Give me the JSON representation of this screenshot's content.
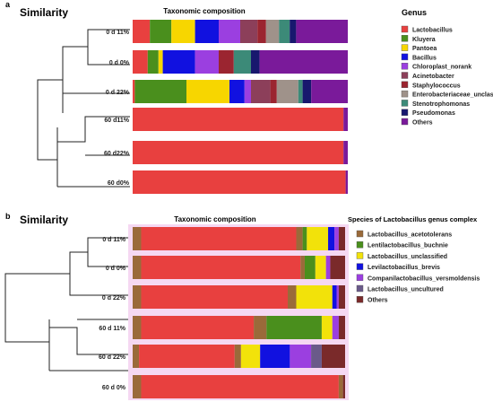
{
  "panels": [
    {
      "letter": "a",
      "similarity_title": "Similarity",
      "composition_title": "Taxonomic composition",
      "legend_title": "Genus",
      "legend": [
        {
          "name": "Lactobacillus",
          "color": "#e8403f"
        },
        {
          "name": "Kluyera",
          "color": "#4a8f1d"
        },
        {
          "name": "Pantoea",
          "color": "#f7d600"
        },
        {
          "name": "Bacillus",
          "color": "#1111e0"
        },
        {
          "name": "Chloroplast_norank",
          "color": "#9b3fe0"
        },
        {
          "name": "Acinetobacter",
          "color": "#8c3f5a"
        },
        {
          "name": "Staphylococcus",
          "color": "#9b2530"
        },
        {
          "name": "Enterobacteriaceae_unclassified",
          "color": "#9f928a"
        },
        {
          "name": "Stenotrophomonas",
          "color": "#3c8a78"
        },
        {
          "name": "Pseudomonas",
          "color": "#18186e"
        },
        {
          "name": "Others",
          "color": "#7a1a9a"
        }
      ]
    },
    {
      "letter": "b",
      "similarity_title": "Similarity",
      "composition_title": "Taxonomic composition",
      "legend_title": "Species of Lactobacillus genus complex",
      "legend": [
        {
          "name": "Lactobacillus_acetotolerans",
          "color": "#9a6a3a"
        },
        {
          "name": "Lentilactobacillus_buchnie",
          "color": "#4a8f1d"
        },
        {
          "name": "Lactobacillus_unclassified",
          "color": "#f2e20a"
        },
        {
          "name": "Levilactobacillus_brevis",
          "color": "#1111e0"
        },
        {
          "name": "Companilactobacillus_versmoldensis",
          "color": "#9b3fe0"
        },
        {
          "name": "Lactobacillus_uncultured",
          "color": "#6a5a8a"
        },
        {
          "name": "Others",
          "color": "#7a2a2a"
        }
      ]
    }
  ],
  "chart_data": [
    {
      "type": "bar",
      "orientation": "horizontal",
      "stacked": true,
      "title": "Taxonomic composition",
      "categories": [
        "0 d  11%",
        "0 d 0%",
        "0 d 22%",
        "60 d11%",
        "60 d22%",
        "60 d0%"
      ],
      "xlim": [
        0,
        100
      ],
      "series": [
        {
          "name": "Lactobacillus",
          "color": "#e8403f",
          "values": [
            8,
            7,
            1,
            98,
            98,
            99
          ]
        },
        {
          "name": "Kluyera",
          "color": "#4a8f1d",
          "values": [
            10,
            5,
            24,
            0,
            0,
            0
          ]
        },
        {
          "name": "Pantoea",
          "color": "#f7d600",
          "values": [
            11,
            2,
            20,
            0,
            0,
            0
          ]
        },
        {
          "name": "Bacillus",
          "color": "#1111e0",
          "values": [
            11,
            15,
            7,
            0,
            0,
            0
          ]
        },
        {
          "name": "Chloroplast_norank",
          "color": "#9b3fe0",
          "values": [
            10,
            11,
            3,
            0,
            0,
            0
          ]
        },
        {
          "name": "Acinetobacter",
          "color": "#8c3f5a",
          "values": [
            8,
            0,
            9,
            0,
            0,
            0
          ]
        },
        {
          "name": "Staphylococcus",
          "color": "#9b2530",
          "values": [
            4,
            7,
            3,
            0,
            0,
            0
          ]
        },
        {
          "name": "Enterobacteriaceae_unclassified",
          "color": "#9f928a",
          "values": [
            6,
            0,
            10,
            0,
            0,
            0
          ]
        },
        {
          "name": "Stenotrophomonas",
          "color": "#3c8a78",
          "values": [
            5,
            8,
            2,
            0,
            0,
            0
          ]
        },
        {
          "name": "Pseudomonas",
          "color": "#18186e",
          "values": [
            3,
            4,
            4,
            0,
            0,
            0
          ]
        },
        {
          "name": "Others",
          "color": "#7a1a9a",
          "values": [
            24,
            41,
            17,
            2,
            2,
            1
          ]
        }
      ]
    },
    {
      "type": "bar",
      "orientation": "horizontal",
      "stacked": true,
      "title": "Taxonomic composition",
      "categories": [
        "0 d 11%",
        "0 d 0%",
        "0 d 22%",
        "60 d 11%",
        "60 d 22%",
        "60 d 0%"
      ],
      "xlim": [
        0,
        100
      ],
      "series": [
        {
          "name": "Lactobacillus_acetotolerans",
          "color": "#9a6a3a",
          "values": [
            4,
            4,
            4,
            4,
            3,
            4
          ]
        },
        {
          "name": "Lactobacillus",
          "color": "#e8403f",
          "values": [
            73,
            75,
            69,
            53,
            45,
            93
          ]
        },
        {
          "name": "Lactobacillus_acetotolerans",
          "color": "#9a6a3a",
          "values": [
            3,
            2,
            4,
            6,
            3,
            2
          ]
        },
        {
          "name": "Lentilactobacillus_buchnie",
          "color": "#4a8f1d",
          "values": [
            2,
            5,
            0,
            26,
            0,
            0
          ]
        },
        {
          "name": "Lactobacillus_unclassified",
          "color": "#f2e20a",
          "values": [
            10,
            5,
            17,
            5,
            9,
            0
          ]
        },
        {
          "name": "Levilactobacillus_brevis",
          "color": "#1111e0",
          "values": [
            3,
            0,
            2,
            0,
            14,
            0
          ]
        },
        {
          "name": "Companilactobacillus_versmoldensis",
          "color": "#9b3fe0",
          "values": [
            2,
            2,
            1,
            3,
            10,
            0
          ]
        },
        {
          "name": "Lactobacillus_uncultured",
          "color": "#6a5a8a",
          "values": [
            0,
            0,
            0,
            0,
            5,
            0
          ]
        },
        {
          "name": "Others",
          "color": "#7a2a2a",
          "values": [
            3,
            7,
            3,
            3,
            11,
            1
          ]
        }
      ]
    }
  ]
}
